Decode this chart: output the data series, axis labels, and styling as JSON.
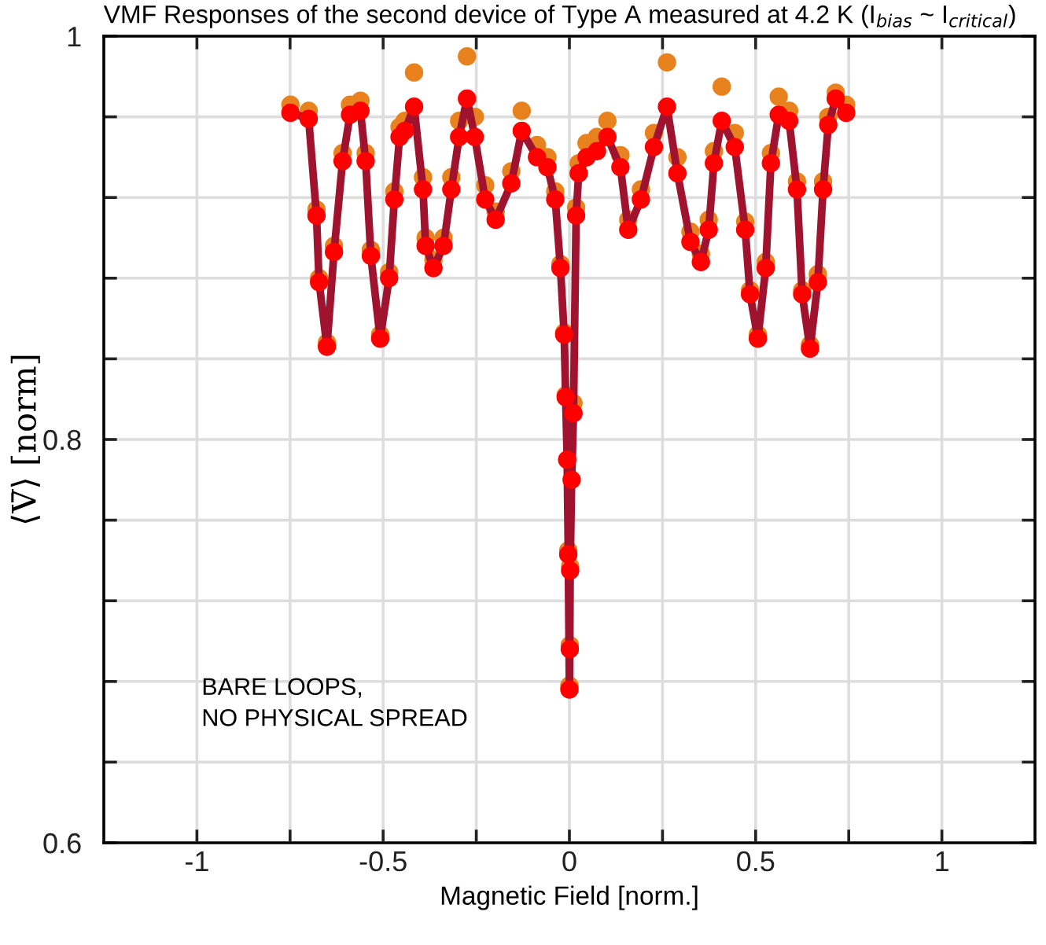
{
  "chart_data": {
    "type": "line",
    "title": "VMF Responses of the second device of Type A measured at 4.2 K (I$_{bias}$ ~ I$_{critical}$)",
    "xlabel": "Magnetic Field [norm.]",
    "ylabel": "⟨V̄⟩ [norm]",
    "x": [
      -0.749,
      -0.7,
      -0.679,
      -0.672,
      -0.651,
      -0.632,
      -0.609,
      -0.589,
      -0.561,
      -0.547,
      -0.533,
      -0.508,
      -0.484,
      -0.47,
      -0.456,
      -0.442,
      -0.417,
      -0.393,
      -0.386,
      -0.365,
      -0.338,
      -0.317,
      -0.296,
      -0.275,
      -0.254,
      -0.226,
      -0.198,
      -0.156,
      -0.128,
      -0.087,
      -0.059,
      -0.038,
      -0.024,
      -0.014,
      -0.01,
      -0.006,
      -0.003,
      0.0,
      0.001,
      0.002,
      0.006,
      0.011,
      0.018,
      0.025,
      0.046,
      0.074,
      0.102,
      0.137,
      0.158,
      0.192,
      0.227,
      0.262,
      0.29,
      0.325,
      0.353,
      0.374,
      0.388,
      0.409,
      0.444,
      0.472,
      0.485,
      0.506,
      0.527,
      0.541,
      0.562,
      0.59,
      0.611,
      0.625,
      0.646,
      0.667,
      0.681,
      0.695,
      0.715,
      0.743
    ],
    "series": [
      {
        "type": "scatter",
        "color": "#e8821e",
        "marker": "circle",
        "values": [
          0.966,
          0.963,
          0.914,
          0.88,
          0.848,
          0.896,
          0.942,
          0.966,
          0.968,
          0.942,
          0.894,
          0.852,
          0.883,
          0.923,
          0.955,
          0.958,
          0.982,
          0.93,
          0.9,
          0.889,
          0.9,
          0.93,
          0.958,
          0.99,
          0.96,
          0.926,
          0.913,
          0.933,
          0.963,
          0.946,
          0.94,
          0.923,
          0.887,
          0.853,
          0.822,
          null,
          0.745,
          0.678,
          0.698,
          0.737,
          null,
          0.818,
          0.915,
          0.937,
          0.947,
          0.95,
          0.958,
          0.941,
          0.909,
          0.924,
          0.952,
          0.987,
          0.94,
          0.903,
          0.892,
          0.909,
          0.943,
          0.975,
          0.952,
          0.908,
          0.874,
          0.852,
          0.888,
          0.942,
          0.97,
          0.963,
          0.928,
          0.874,
          0.847,
          0.882,
          0.928,
          0.96,
          0.972,
          0.966
        ]
      },
      {
        "color": "#a0132f",
        "marker": "none",
        "line_style": "solid",
        "values": [
          0.962,
          0.959,
          0.911,
          0.878,
          0.846,
          0.893,
          0.938,
          0.961,
          0.963,
          0.938,
          0.891,
          0.85,
          0.88,
          0.919,
          0.95,
          0.953,
          0.965,
          0.924,
          0.896,
          0.885,
          0.896,
          0.924,
          0.95,
          0.969,
          0.95,
          0.919,
          0.909,
          0.927,
          0.953,
          0.94,
          0.935,
          0.919,
          0.885,
          0.852,
          0.821,
          0.79,
          0.743,
          0.676,
          0.696,
          0.735,
          0.78,
          0.813,
          0.911,
          0.932,
          0.94,
          0.943,
          0.95,
          0.935,
          0.904,
          0.919,
          0.945,
          0.965,
          0.932,
          0.898,
          0.888,
          0.904,
          0.937,
          0.958,
          0.945,
          0.904,
          0.872,
          0.85,
          0.885,
          0.937,
          0.961,
          0.958,
          0.924,
          0.872,
          0.845,
          0.878,
          0.924,
          0.956,
          0.969,
          0.962
        ]
      },
      {
        "type": "scatter",
        "color": "#ff0000",
        "marker": "circle",
        "values": [
          0.962,
          0.959,
          0.911,
          0.878,
          0.846,
          0.893,
          0.938,
          0.961,
          0.963,
          0.938,
          0.891,
          0.85,
          0.88,
          0.919,
          0.95,
          0.953,
          0.965,
          0.924,
          0.896,
          0.885,
          0.896,
          0.924,
          0.95,
          0.969,
          0.95,
          0.919,
          0.909,
          0.927,
          0.953,
          0.94,
          0.935,
          0.919,
          0.885,
          0.852,
          0.821,
          0.79,
          0.743,
          0.676,
          0.696,
          0.735,
          0.78,
          0.813,
          0.911,
          0.932,
          0.94,
          0.943,
          0.95,
          0.935,
          0.904,
          0.919,
          0.945,
          0.965,
          0.932,
          0.898,
          0.888,
          0.904,
          0.937,
          0.958,
          0.945,
          0.904,
          0.872,
          0.85,
          0.885,
          0.937,
          0.961,
          0.958,
          0.924,
          0.872,
          0.845,
          0.878,
          0.924,
          0.956,
          0.969,
          0.962
        ]
      }
    ],
    "xlim": [
      -1.25,
      1.25
    ],
    "xticks": [
      -1,
      {
        "value": -0.75,
        "label": null
      },
      -0.5,
      {
        "value": -0.25,
        "label": null
      },
      0,
      {
        "value": 0.25,
        "label": null
      },
      0.5,
      {
        "value": 0.75,
        "label": null
      },
      1
    ],
    "ylim": [
      0.6,
      1
    ],
    "yticks": [
      0.6,
      {
        "value": 0.64,
        "label": null
      },
      {
        "value": 0.68,
        "label": null
      },
      {
        "value": 0.72,
        "label": null
      },
      {
        "value": 0.76,
        "label": null
      },
      0.8,
      {
        "value": 0.84,
        "label": null
      },
      {
        "value": 0.88,
        "label": null
      },
      {
        "value": 0.92,
        "label": null
      },
      {
        "value": 0.96,
        "label": null
      },
      1
    ],
    "grid": true,
    "annotations": [
      "BARE LOOPS,\nNO PHYSICAL SPREAD"
    ]
  }
}
